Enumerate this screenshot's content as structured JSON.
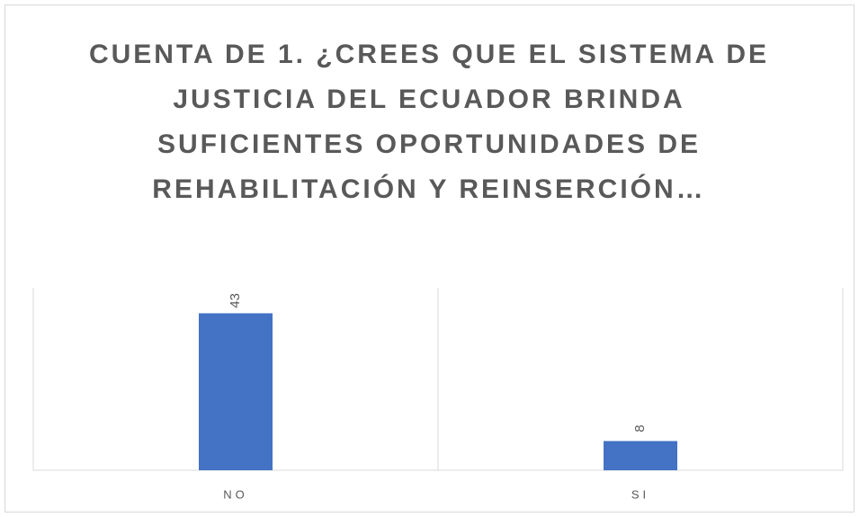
{
  "chart_data": {
    "type": "bar",
    "title": "CUENTA DE 1. ¿CREES QUE EL SISTEMA DE JUSTICIA DEL ECUADOR BRINDA SUFICIENTES OPORTUNIDADES DE REHABILITACIÓN Y REINSERCIÓN…",
    "categories": [
      "NO",
      "SI"
    ],
    "values": [
      43,
      8
    ],
    "color": "#4472c4",
    "ylim": [
      0,
      50
    ]
  }
}
